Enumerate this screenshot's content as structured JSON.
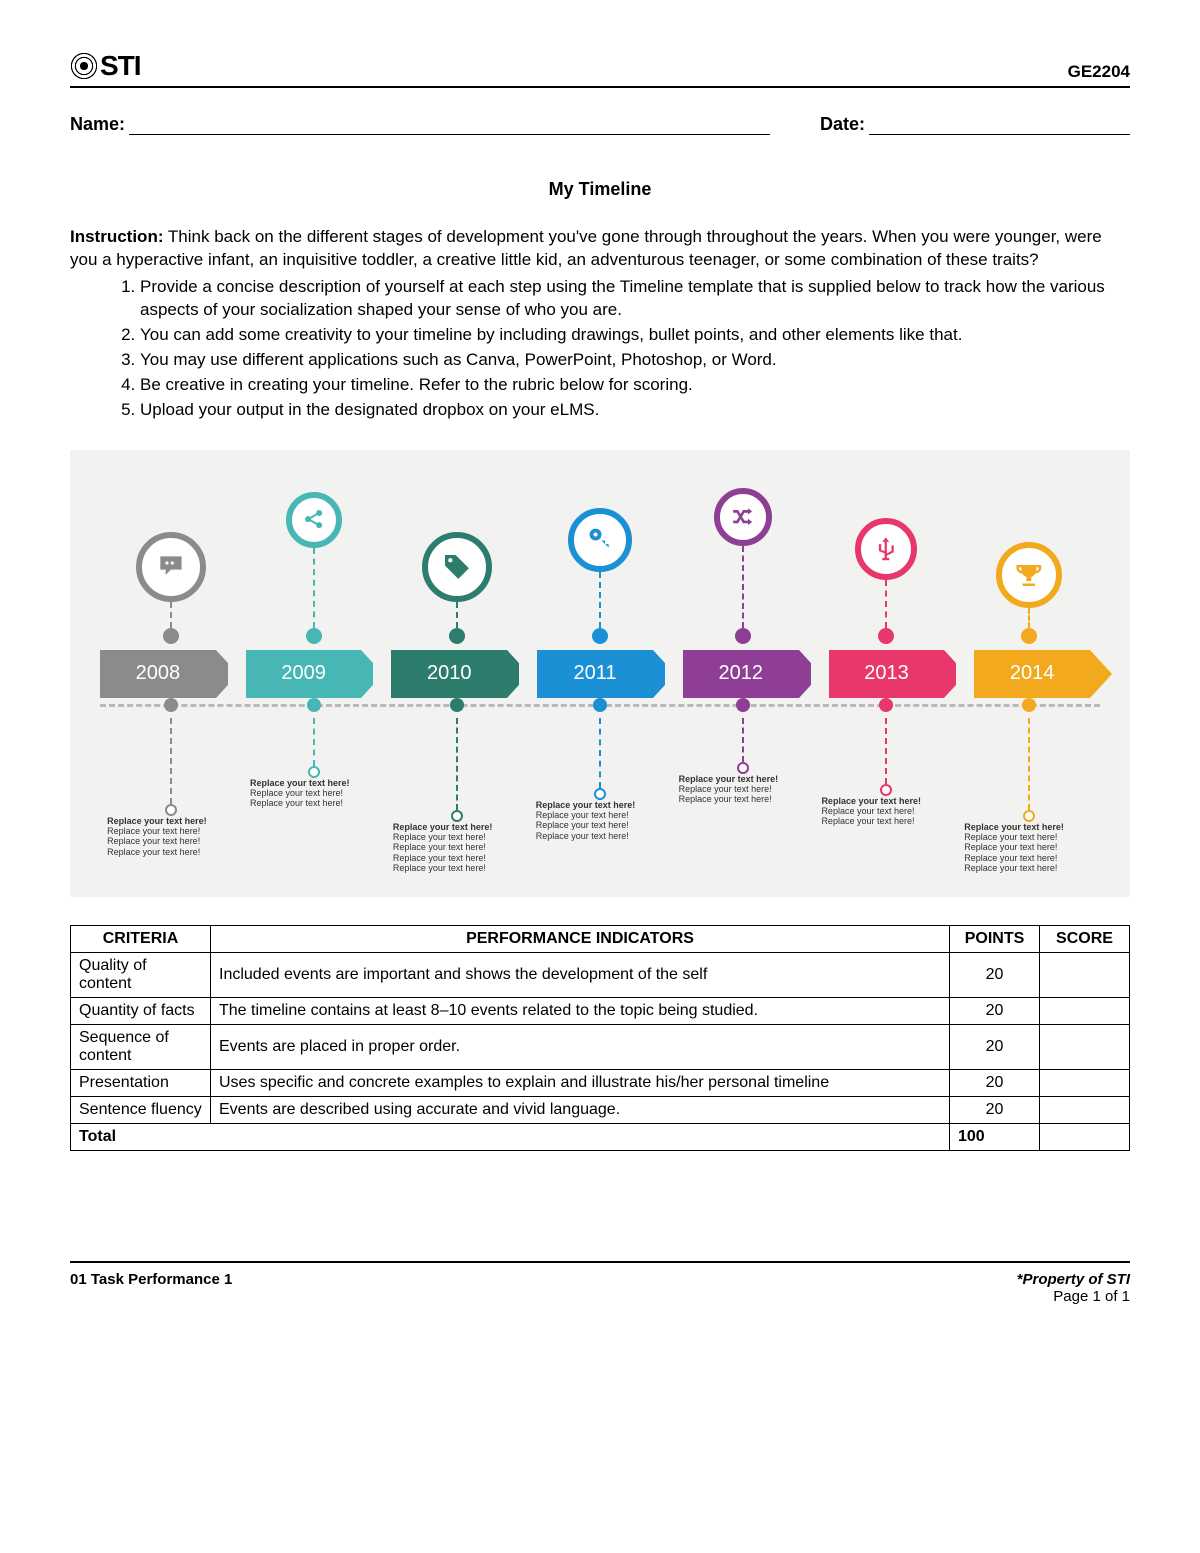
{
  "header": {
    "logo_text": "STI",
    "course_code": "GE2204"
  },
  "fields": {
    "name_label": "Name:",
    "date_label": "Date:"
  },
  "title": "My Timeline",
  "instruction_label": "Instruction:",
  "instruction_text": " Think back on the different stages of development you've gone through throughout the years. When you were younger, were you a hyperactive infant, an inquisitive toddler, a creative little kid, an adventurous teenager, or some combination of these traits?",
  "steps": [
    "Provide a concise description of yourself at each step using the Timeline template that is supplied below to track how the various aspects of your socialization shaped your sense of who you are.",
    "You can add some creativity to your timeline by including drawings, bullet points, and other elements like that.",
    "You may use different applications such as Canva, PowerPoint, Photoshop, or Word.",
    "Be creative in creating your timeline. Refer to the rubric below for scoring.",
    "Upload your output in the designated dropbox on your eLMS."
  ],
  "timeline": {
    "background_color": "#f2f2f0",
    "dash_line_color": "#b9b9b7",
    "icon_sizes": [
      70,
      56,
      70,
      64,
      58,
      62,
      66
    ],
    "top_stem_heights": [
      26,
      80,
      26,
      56,
      82,
      48,
      20
    ],
    "bottom_stem_heights": [
      86,
      48,
      92,
      70,
      44,
      66,
      92
    ],
    "caption_bold": "Replace your text here!",
    "caption_plain": "Replace your text here!",
    "caption_plain_repeats": [
      3,
      2,
      4,
      3,
      2,
      2,
      4
    ],
    "items": [
      {
        "year": "2008",
        "color": "#8b8b89",
        "icon": "speech-bubble-icon"
      },
      {
        "year": "2009",
        "color": "#46b7b4",
        "icon": "share-icon"
      },
      {
        "year": "2010",
        "color": "#2d7d6e",
        "icon": "tag-icon"
      },
      {
        "year": "2011",
        "color": "#1c90d4",
        "icon": "key-icon"
      },
      {
        "year": "2012",
        "color": "#8e3e94",
        "icon": "shuffle-icon"
      },
      {
        "year": "2013",
        "color": "#e8376a",
        "icon": "usb-icon"
      },
      {
        "year": "2014",
        "color": "#f2a91e",
        "icon": "trophy-icon"
      }
    ]
  },
  "rubric": {
    "headers": {
      "criteria": "CRITERIA",
      "indicators": "PERFORMANCE INDICATORS",
      "points": "POINTS",
      "score": "SCORE"
    },
    "rows": [
      {
        "criteria": "Quality of content",
        "indicator": "Included events are important and shows the development of the self",
        "points": "20"
      },
      {
        "criteria": "Quantity of facts",
        "indicator": "The timeline contains at least 8–10 events related to the topic being studied.",
        "points": "20"
      },
      {
        "criteria": "Sequence of content",
        "indicator": "Events are placed in proper order.",
        "points": "20"
      },
      {
        "criteria": "Presentation",
        "indicator": "Uses specific and concrete examples to explain and illustrate his/her personal timeline",
        "points": "20"
      },
      {
        "criteria": "Sentence fluency",
        "indicator": "Events are described using accurate and vivid language.",
        "points": "20"
      }
    ],
    "total_label": "Total",
    "total_points": "100"
  },
  "footer": {
    "left": "01 Task Performance 1",
    "right_property": "*Property of STI",
    "right_page": "Page 1 of 1"
  }
}
